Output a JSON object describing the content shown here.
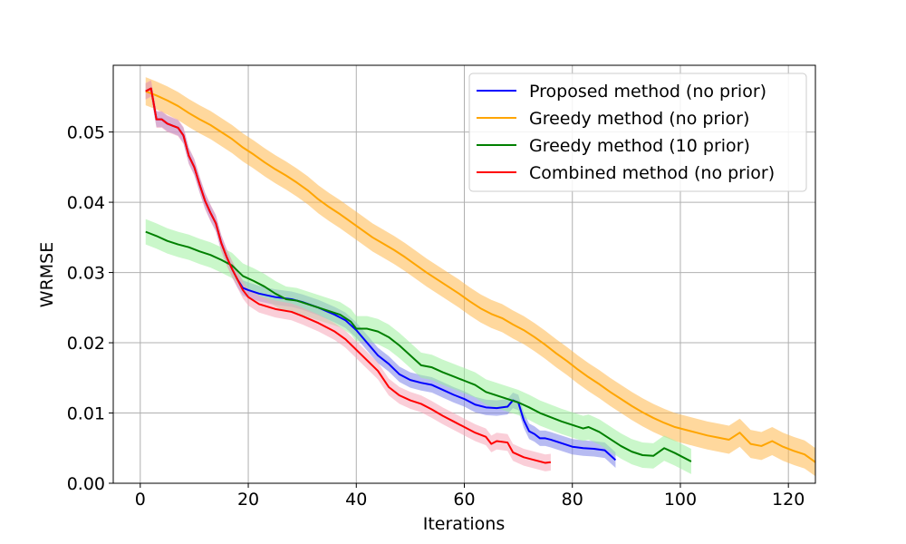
{
  "chart_data": {
    "type": "line",
    "xlabel": "Iterations",
    "ylabel": "WRMSE",
    "xlim": [
      -5,
      125
    ],
    "ylim": [
      0,
      0.0595
    ],
    "xticks": [
      0,
      20,
      40,
      60,
      80,
      100,
      120
    ],
    "xtick_labels": [
      "0",
      "20",
      "40",
      "60",
      "80",
      "100",
      "120"
    ],
    "yticks": [
      0,
      0.01,
      0.02,
      0.03,
      0.04,
      0.05
    ],
    "ytick_labels": [
      "0.00",
      "0.01",
      "0.02",
      "0.03",
      "0.04",
      "0.05"
    ],
    "grid": true,
    "legend_position": "top-right",
    "series": [
      {
        "name": "Proposed method (no prior)",
        "color": "#0000ff",
        "fill": "#7b84e8",
        "points": [
          [
            1,
            0.0558
          ],
          [
            2,
            0.0562
          ],
          [
            3,
            0.0518
          ],
          [
            4,
            0.0518
          ],
          [
            5,
            0.0512
          ],
          [
            6,
            0.0509
          ],
          [
            7,
            0.0506
          ],
          [
            8,
            0.0495
          ],
          [
            9,
            0.0466
          ],
          [
            10,
            0.045
          ],
          [
            11,
            0.0425
          ],
          [
            12,
            0.0402
          ],
          [
            13,
            0.0385
          ],
          [
            14,
            0.037
          ],
          [
            15,
            0.0342
          ],
          [
            16,
            0.0322
          ],
          [
            17,
            0.0305
          ],
          [
            18,
            0.029
          ],
          [
            19,
            0.0278
          ],
          [
            20,
            0.0275
          ],
          [
            22,
            0.027
          ],
          [
            25,
            0.0265
          ],
          [
            28,
            0.0262
          ],
          [
            30,
            0.0258
          ],
          [
            33,
            0.025
          ],
          [
            36,
            0.024
          ],
          [
            38,
            0.0232
          ],
          [
            40,
            0.0218
          ],
          [
            42,
            0.02
          ],
          [
            44,
            0.0182
          ],
          [
            46,
            0.017
          ],
          [
            48,
            0.0155
          ],
          [
            50,
            0.0147
          ],
          [
            52,
            0.0143
          ],
          [
            54,
            0.014
          ],
          [
            56,
            0.0133
          ],
          [
            58,
            0.0126
          ],
          [
            60,
            0.012
          ],
          [
            62,
            0.0112
          ],
          [
            64,
            0.0108
          ],
          [
            66,
            0.0107
          ],
          [
            68,
            0.0109
          ],
          [
            69,
            0.0118
          ],
          [
            70,
            0.0115
          ],
          [
            71,
            0.009
          ],
          [
            72,
            0.0074
          ],
          [
            73,
            0.007
          ],
          [
            74,
            0.0064
          ],
          [
            75,
            0.0064
          ],
          [
            76,
            0.0062
          ],
          [
            78,
            0.0057
          ],
          [
            80,
            0.0052
          ],
          [
            82,
            0.005
          ],
          [
            84,
            0.0049
          ],
          [
            86,
            0.0047
          ],
          [
            88,
            0.0033
          ]
        ],
        "band": 0.0011
      },
      {
        "name": "Greedy method (no prior)",
        "color": "#ffa500",
        "fill": "#ffb84d",
        "points": [
          [
            1,
            0.0558
          ],
          [
            3,
            0.0552
          ],
          [
            5,
            0.0545
          ],
          [
            7,
            0.0537
          ],
          [
            9,
            0.0527
          ],
          [
            11,
            0.0518
          ],
          [
            13,
            0.051
          ],
          [
            15,
            0.05
          ],
          [
            17,
            0.049
          ],
          [
            19,
            0.0478
          ],
          [
            21,
            0.0468
          ],
          [
            23,
            0.0457
          ],
          [
            25,
            0.0447
          ],
          [
            27,
            0.0438
          ],
          [
            29,
            0.0428
          ],
          [
            31,
            0.0417
          ],
          [
            33,
            0.0404
          ],
          [
            35,
            0.0393
          ],
          [
            37,
            0.0383
          ],
          [
            39,
            0.0372
          ],
          [
            41,
            0.0361
          ],
          [
            43,
            0.035
          ],
          [
            45,
            0.0341
          ],
          [
            47,
            0.0332
          ],
          [
            49,
            0.0322
          ],
          [
            51,
            0.0311
          ],
          [
            53,
            0.03
          ],
          [
            55,
            0.029
          ],
          [
            57,
            0.028
          ],
          [
            59,
            0.027
          ],
          [
            61,
            0.0259
          ],
          [
            63,
            0.0249
          ],
          [
            65,
            0.0241
          ],
          [
            67,
            0.0235
          ],
          [
            69,
            0.0226
          ],
          [
            71,
            0.0218
          ],
          [
            73,
            0.0208
          ],
          [
            75,
            0.0197
          ],
          [
            77,
            0.0185
          ],
          [
            79,
            0.0174
          ],
          [
            81,
            0.0162
          ],
          [
            83,
            0.0151
          ],
          [
            85,
            0.0141
          ],
          [
            87,
            0.013
          ],
          [
            89,
            0.012
          ],
          [
            91,
            0.011
          ],
          [
            93,
            0.0101
          ],
          [
            95,
            0.0093
          ],
          [
            97,
            0.0086
          ],
          [
            99,
            0.008
          ],
          [
            101,
            0.0076
          ],
          [
            103,
            0.0072
          ],
          [
            105,
            0.0068
          ],
          [
            107,
            0.0065
          ],
          [
            109,
            0.0062
          ],
          [
            111,
            0.0072
          ],
          [
            113,
            0.0056
          ],
          [
            115,
            0.0053
          ],
          [
            117,
            0.006
          ],
          [
            119,
            0.0052
          ],
          [
            121,
            0.0046
          ],
          [
            123,
            0.0041
          ],
          [
            125,
            0.003
          ]
        ],
        "band": 0.002
      },
      {
        "name": "Greedy method (10 prior)",
        "color": "#008000",
        "fill": "#9ef09e",
        "points": [
          [
            1,
            0.0358
          ],
          [
            3,
            0.0352
          ],
          [
            5,
            0.0345
          ],
          [
            7,
            0.034
          ],
          [
            9,
            0.0336
          ],
          [
            11,
            0.033
          ],
          [
            13,
            0.0325
          ],
          [
            15,
            0.0318
          ],
          [
            17,
            0.031
          ],
          [
            19,
            0.0295
          ],
          [
            21,
            0.0288
          ],
          [
            23,
            0.028
          ],
          [
            25,
            0.027
          ],
          [
            27,
            0.0262
          ],
          [
            29,
            0.026
          ],
          [
            31,
            0.0255
          ],
          [
            33,
            0.025
          ],
          [
            35,
            0.0245
          ],
          [
            37,
            0.024
          ],
          [
            39,
            0.023
          ],
          [
            40,
            0.022
          ],
          [
            42,
            0.022
          ],
          [
            44,
            0.0216
          ],
          [
            46,
            0.0208
          ],
          [
            48,
            0.0196
          ],
          [
            50,
            0.0182
          ],
          [
            52,
            0.0168
          ],
          [
            54,
            0.0165
          ],
          [
            56,
            0.0158
          ],
          [
            58,
            0.0152
          ],
          [
            60,
            0.0146
          ],
          [
            62,
            0.014
          ],
          [
            64,
            0.013
          ],
          [
            66,
            0.0125
          ],
          [
            68,
            0.012
          ],
          [
            70,
            0.0115
          ],
          [
            72,
            0.0108
          ],
          [
            74,
            0.01
          ],
          [
            76,
            0.0094
          ],
          [
            78,
            0.0088
          ],
          [
            80,
            0.0083
          ],
          [
            82,
            0.0078
          ],
          [
            83,
            0.008
          ],
          [
            85,
            0.0073
          ],
          [
            87,
            0.0063
          ],
          [
            89,
            0.0053
          ],
          [
            91,
            0.0045
          ],
          [
            93,
            0.004
          ],
          [
            95,
            0.0039
          ],
          [
            97,
            0.005
          ],
          [
            99,
            0.0043
          ],
          [
            102,
            0.0031
          ]
        ],
        "band": 0.0018
      },
      {
        "name": "Combined method (no prior)",
        "color": "#ff0000",
        "fill": "#f5a6b8",
        "points": [
          [
            1,
            0.0558
          ],
          [
            2,
            0.0562
          ],
          [
            3,
            0.0518
          ],
          [
            4,
            0.0518
          ],
          [
            5,
            0.0512
          ],
          [
            6,
            0.0509
          ],
          [
            7,
            0.0506
          ],
          [
            8,
            0.0495
          ],
          [
            9,
            0.0466
          ],
          [
            10,
            0.045
          ],
          [
            11,
            0.0425
          ],
          [
            12,
            0.0402
          ],
          [
            13,
            0.0385
          ],
          [
            14,
            0.037
          ],
          [
            15,
            0.0342
          ],
          [
            16,
            0.0322
          ],
          [
            17,
            0.0305
          ],
          [
            18,
            0.029
          ],
          [
            19,
            0.0275
          ],
          [
            20,
            0.0265
          ],
          [
            22,
            0.0255
          ],
          [
            25,
            0.0248
          ],
          [
            28,
            0.0244
          ],
          [
            30,
            0.0238
          ],
          [
            33,
            0.0228
          ],
          [
            36,
            0.0216
          ],
          [
            38,
            0.0205
          ],
          [
            40,
            0.019
          ],
          [
            42,
            0.0175
          ],
          [
            44,
            0.016
          ],
          [
            46,
            0.0137
          ],
          [
            48,
            0.0125
          ],
          [
            50,
            0.0118
          ],
          [
            52,
            0.0113
          ],
          [
            54,
            0.0105
          ],
          [
            56,
            0.0096
          ],
          [
            58,
            0.0088
          ],
          [
            60,
            0.008
          ],
          [
            62,
            0.0072
          ],
          [
            64,
            0.0066
          ],
          [
            65,
            0.0056
          ],
          [
            66,
            0.006
          ],
          [
            68,
            0.0058
          ],
          [
            69,
            0.0044
          ],
          [
            71,
            0.0037
          ],
          [
            73,
            0.0033
          ],
          [
            75,
            0.0029
          ],
          [
            76,
            0.003
          ]
        ],
        "band": 0.0012
      }
    ]
  }
}
